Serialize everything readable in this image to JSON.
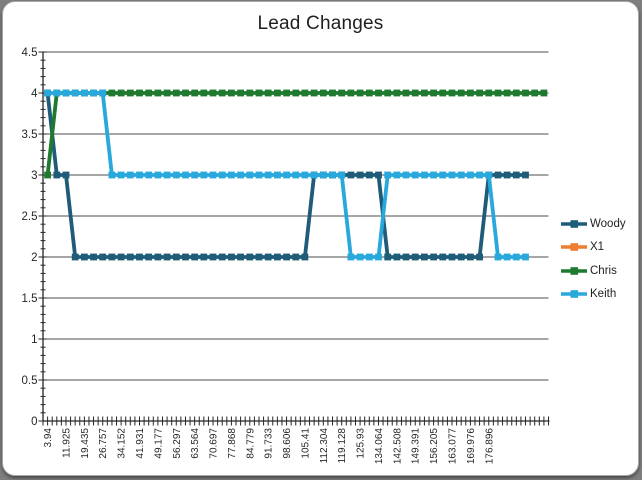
{
  "page": {
    "background_color": "#7E7E7E",
    "frame_background": "#FFFFFF",
    "frame_border_color": "#A9A9A9"
  },
  "chart_data": {
    "type": "line",
    "title": "Lead Changes",
    "xlabel": "",
    "ylabel": "",
    "ylim": [
      0,
      4.5
    ],
    "y_ticks": [
      0,
      0.5,
      1,
      1.5,
      2,
      2.5,
      3,
      3.5,
      4,
      4.5
    ],
    "grid": true,
    "legend_position": "right",
    "axis_color": "#262626",
    "grid_color": "#4D4D4D",
    "tick_label_color": "#262626",
    "n_points": 55,
    "x_label_interval": 2,
    "x_tick_labels": [
      "3.94",
      "11.925",
      "19.435",
      "26.757",
      "34.152",
      "41.931",
      "49.177",
      "56.297",
      "63.564",
      "70.697",
      "77.868",
      "84.779",
      "91.733",
      "98.606",
      "105.41",
      "112.304",
      "119.128",
      "125.93",
      "134.064",
      "142.508",
      "149.391",
      "156.205",
      "163.077",
      "169.976",
      "176.896"
    ],
    "series": [
      {
        "name": "Woody",
        "color": "#1E5C78",
        "values": [
          4,
          3,
          3,
          2,
          2,
          2,
          2,
          2,
          2,
          2,
          2,
          2,
          2,
          2,
          2,
          2,
          2,
          2,
          2,
          2,
          2,
          2,
          2,
          2,
          2,
          2,
          2,
          2,
          2,
          3,
          3,
          3,
          3,
          3,
          3,
          3,
          3,
          2,
          2,
          2,
          2,
          2,
          2,
          2,
          2,
          2,
          2,
          2,
          3,
          3,
          3,
          3,
          3,
          null,
          null
        ]
      },
      {
        "name": "X1",
        "color": "#EE7D2F",
        "values": [
          null,
          null,
          null,
          null,
          null,
          null,
          null,
          null,
          null,
          null,
          null,
          null,
          null,
          null,
          null,
          null,
          null,
          null,
          null,
          null,
          null,
          null,
          null,
          null,
          null,
          null,
          null,
          null,
          null,
          null,
          null,
          null,
          null,
          null,
          null,
          null,
          null,
          null,
          null,
          null,
          null,
          null,
          null,
          null,
          null,
          null,
          null,
          null,
          null,
          null,
          null,
          null,
          null,
          null,
          null
        ]
      },
      {
        "name": "Chris",
        "color": "#1E7A2E",
        "values": [
          3,
          4,
          4,
          4,
          4,
          4,
          4,
          4,
          4,
          4,
          4,
          4,
          4,
          4,
          4,
          4,
          4,
          4,
          4,
          4,
          4,
          4,
          4,
          4,
          4,
          4,
          4,
          4,
          4,
          4,
          4,
          4,
          4,
          4,
          4,
          4,
          4,
          4,
          4,
          4,
          4,
          4,
          4,
          4,
          4,
          4,
          4,
          4,
          4,
          4,
          4,
          4,
          4,
          4,
          4
        ]
      },
      {
        "name": "Keith",
        "color": "#29A8DC",
        "values": [
          4,
          4,
          4,
          4,
          4,
          4,
          4,
          3,
          3,
          3,
          3,
          3,
          3,
          3,
          3,
          3,
          3,
          3,
          3,
          3,
          3,
          3,
          3,
          3,
          3,
          3,
          3,
          3,
          3,
          3,
          3,
          3,
          3,
          2,
          2,
          2,
          2,
          3,
          3,
          3,
          3,
          3,
          3,
          3,
          3,
          3,
          3,
          3,
          3,
          2,
          2,
          2,
          2,
          null,
          null
        ]
      }
    ]
  }
}
